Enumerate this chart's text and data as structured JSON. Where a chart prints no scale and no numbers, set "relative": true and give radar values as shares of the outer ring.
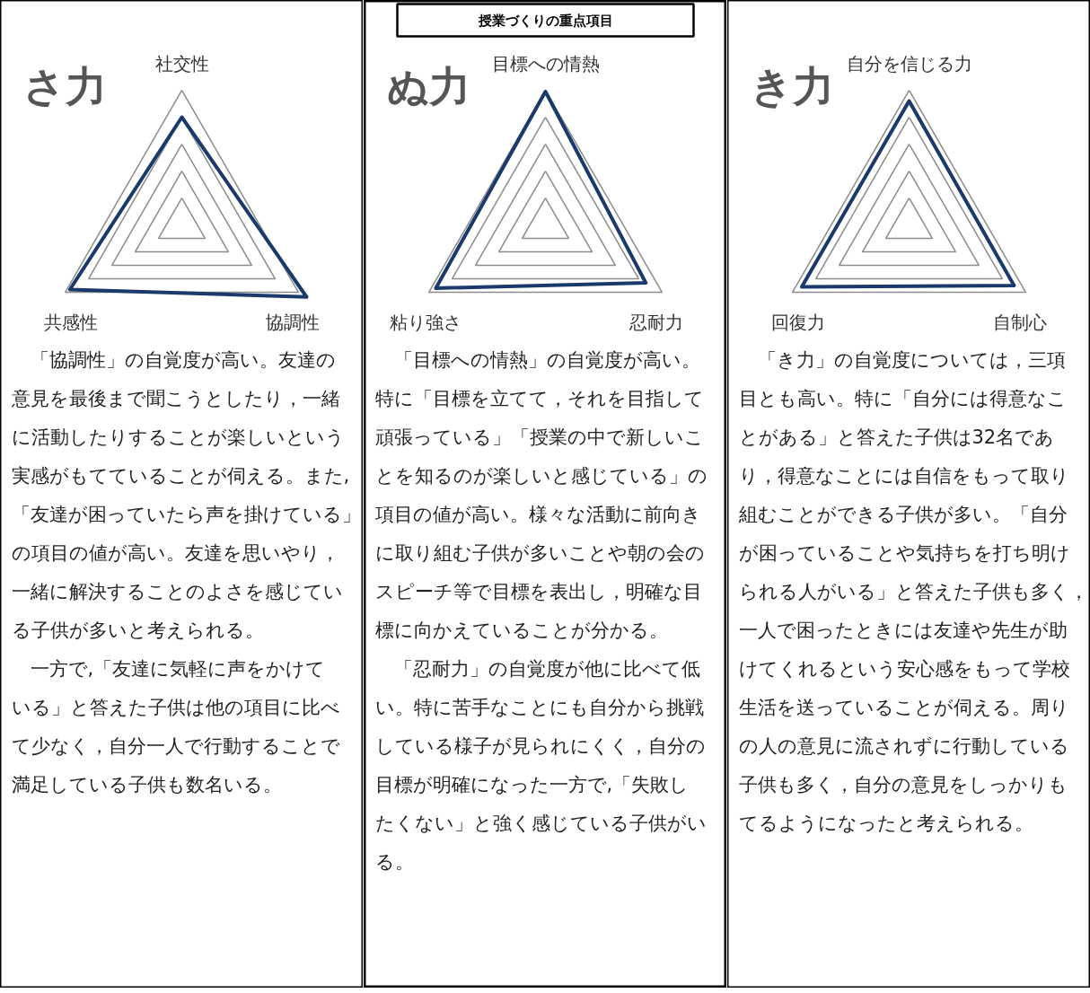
{
  "chart_data": [
    {
      "type": "radar",
      "title": "さ力",
      "relative": true,
      "grid": true,
      "categories": [
        "社交性",
        "協調性",
        "共感性"
      ],
      "series": [
        {
          "color": "#1b3a6b",
          "values": [
            0.8,
            1.07,
            0.96
          ]
        }
      ],
      "annotations": [
        "「協調性」の自覚度が高い。友達の意見を最後まで聞こうとしたり，一緒に活動したりすることが楽しいという実感がもてていることが伺える。また,「友達が困っていたら声を掛けている」の項目の値が高い。友達を思いやり，一緒に解決することのよさを感じている子供が多いと考えられる。",
        "一方で,「友達に気軽に声をかけている」と答えた子供は他の項目に比べて少なく，自分一人で行動することで満足している子供も数名いる。"
      ]
    },
    {
      "type": "radar",
      "title": "ぬ力",
      "subtitle": "授業づくりの重点項目",
      "relative": true,
      "grid": true,
      "categories": [
        "目標への情熱",
        "忍耐力",
        "粘り強さ"
      ],
      "series": [
        {
          "color": "#1b3a6b",
          "values": [
            0.99,
            0.86,
            0.94
          ]
        }
      ],
      "annotations": [
        "「目標への情熱」の自覚度が高い。特に「目標を立てて，それを目指して頑張っている」「授業の中で新しいことを知るのが楽しいと感じている」の項目の値が高い。様々な活動に前向きに取り組む子供が多いことや朝の会のスピーチ等で目標を表出し，明確な目標に向かえていることが分かる。",
        "「忍耐力」の自覚度が他に比べて低い。特に苦手なことにも自分から挑戦している様子が見られにくく，自分の目標が明確になった一方で,「失敗したくない」と強く感じている子供がいる。"
      ]
    },
    {
      "type": "radar",
      "title": "き力",
      "relative": true,
      "grid": true,
      "categories": [
        "自分を信じる力",
        "自制心",
        "回復力"
      ],
      "series": [
        {
          "color": "#1b3a6b",
          "values": [
            0.92,
            0.9,
            0.92
          ]
        }
      ],
      "annotations": [
        "「き力」の自覚度については，三項目とも高い。特に「自分には得意なことがある」と答えた子供は32名であり，得意なことには自信をもって取り組むことができる子供が多い。「自分が困っていることや気持ちを打ち明けられる人がいる」と答えた子供も多く，一人で困ったときには友達や先生が助けてくれるという安心感をもって学校生活を送っていることが伺える。周りの人の意見に流されずに行動している子供も多く，自分の意見をしっかりもてるようになったと考えられる。"
      ]
    }
  ]
}
